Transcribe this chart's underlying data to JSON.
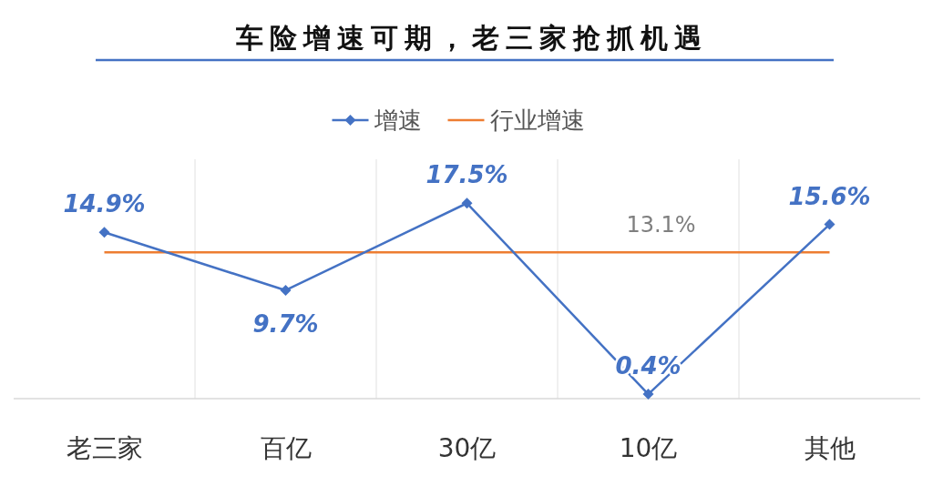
{
  "chart_data": {
    "type": "line",
    "title": "车险增速可期，老三家抢抓机遇",
    "categories": [
      "老三家",
      "百亿",
      "30亿",
      "10亿",
      "其他"
    ],
    "series": [
      {
        "name": "增速",
        "color": "#4472c4",
        "marker": "diamond",
        "values": [
          14.9,
          9.7,
          17.5,
          0.4,
          15.6
        ],
        "value_labels": [
          "14.9%",
          "9.7%",
          "17.5%",
          "0.4%",
          "15.6%"
        ]
      },
      {
        "name": "行业增速",
        "color": "#ed7d31",
        "marker": "none",
        "values": [
          13.1,
          13.1,
          13.1,
          13.1,
          13.1
        ],
        "value_labels": [
          null,
          null,
          null,
          "13.1%",
          null
        ]
      }
    ],
    "legend": "top",
    "grid": "x"
  }
}
